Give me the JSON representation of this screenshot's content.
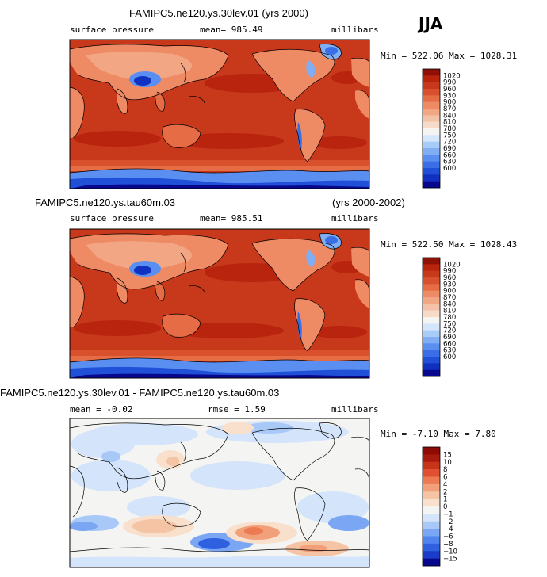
{
  "season": "JJA",
  "colors": {
    "pressure_scale": [
      "#08088e",
      "#1030c0",
      "#2050d8",
      "#3a6ee6",
      "#5a8ef0",
      "#80aef4",
      "#a8ccf8",
      "#d4e6fb",
      "#f4f4f2",
      "#f6dcc8",
      "#f4c2a6",
      "#f2a684",
      "#ee8a64",
      "#e66c46",
      "#d8502c",
      "#c8381a",
      "#b8240e",
      "#8e1006"
    ],
    "diff_scale": [
      "#08088e",
      "#1a3cc8",
      "#2e60e0",
      "#4f84ee",
      "#7aa6f4",
      "#a8c8f8",
      "#d4e4fb",
      "#f4f4f2",
      "#f8e0cc",
      "#f4c4a4",
      "#f2a07a",
      "#ec7a52",
      "#e05030",
      "#c8341a",
      "#a81a0c",
      "#8e0a04"
    ]
  },
  "panels": [
    {
      "title": "FAMIPC5.ne120.ys.30lev.01 (yrs 2000)",
      "left_label": "surface pressure",
      "mean_label": "mean= 985.49",
      "units": "millibars",
      "stats": "Min = 522.06 Max = 1028.31",
      "colorbar_labels": [
        "1020",
        "990",
        "960",
        "930",
        "900",
        "870",
        "840",
        "810",
        "780",
        "750",
        "720",
        "690",
        "660",
        "630",
        "600"
      ]
    },
    {
      "title_left": "FAMIPC5.ne120.ys.tau60m.03",
      "title_right": "(yrs 2000-2002)",
      "left_label": "surface pressure",
      "mean_label": "mean= 985.51",
      "units": "millibars",
      "stats": "Min = 522.50 Max = 1028.43",
      "colorbar_labels": [
        "1020",
        "990",
        "960",
        "930",
        "900",
        "870",
        "840",
        "810",
        "780",
        "750",
        "720",
        "690",
        "660",
        "630",
        "600"
      ]
    },
    {
      "title": "FAMIPC5.ne120.ys.30lev.01 - FAMIPC5.ne120.ys.tau60m.03",
      "left_label": "mean =   -0.02",
      "rmse_label": "rmse =    1.59",
      "units": "millibars",
      "stats": "Min =  -7.10 Max =   7.80",
      "colorbar_labels": [
        "15",
        "10",
        "8",
        "6",
        "4",
        "2",
        "1",
        "0",
        "−1",
        "−2",
        "−4",
        "−6",
        "−8",
        "−10",
        "−15"
      ]
    }
  ],
  "chart_data": [
    {
      "type": "heatmap",
      "title": "FAMIPC5.ne120.ys.30lev.01 (yrs 2000)",
      "variable": "surface pressure",
      "units": "millibars",
      "season": "JJA",
      "mean": 985.49,
      "min": 522.06,
      "max": 1028.31,
      "colorbar_levels": [
        600,
        630,
        660,
        690,
        720,
        750,
        780,
        810,
        840,
        870,
        900,
        930,
        960,
        990,
        1020
      ]
    },
    {
      "type": "heatmap",
      "title": "FAMIPC5.ne120.ys.tau60m.03 (yrs 2000-2002)",
      "variable": "surface pressure",
      "units": "millibars",
      "season": "JJA",
      "mean": 985.51,
      "min": 522.5,
      "max": 1028.43,
      "colorbar_levels": [
        600,
        630,
        660,
        690,
        720,
        750,
        780,
        810,
        840,
        870,
        900,
        930,
        960,
        990,
        1020
      ]
    },
    {
      "type": "heatmap",
      "title": "FAMIPC5.ne120.ys.30lev.01 - FAMIPC5.ne120.ys.tau60m.03",
      "units": "millibars",
      "season": "JJA",
      "mean": -0.02,
      "rmse": 1.59,
      "min": -7.1,
      "max": 7.8,
      "colorbar_levels": [
        -15,
        -10,
        -8,
        -6,
        -4,
        -2,
        -1,
        0,
        1,
        2,
        4,
        6,
        8,
        10,
        15
      ]
    }
  ]
}
